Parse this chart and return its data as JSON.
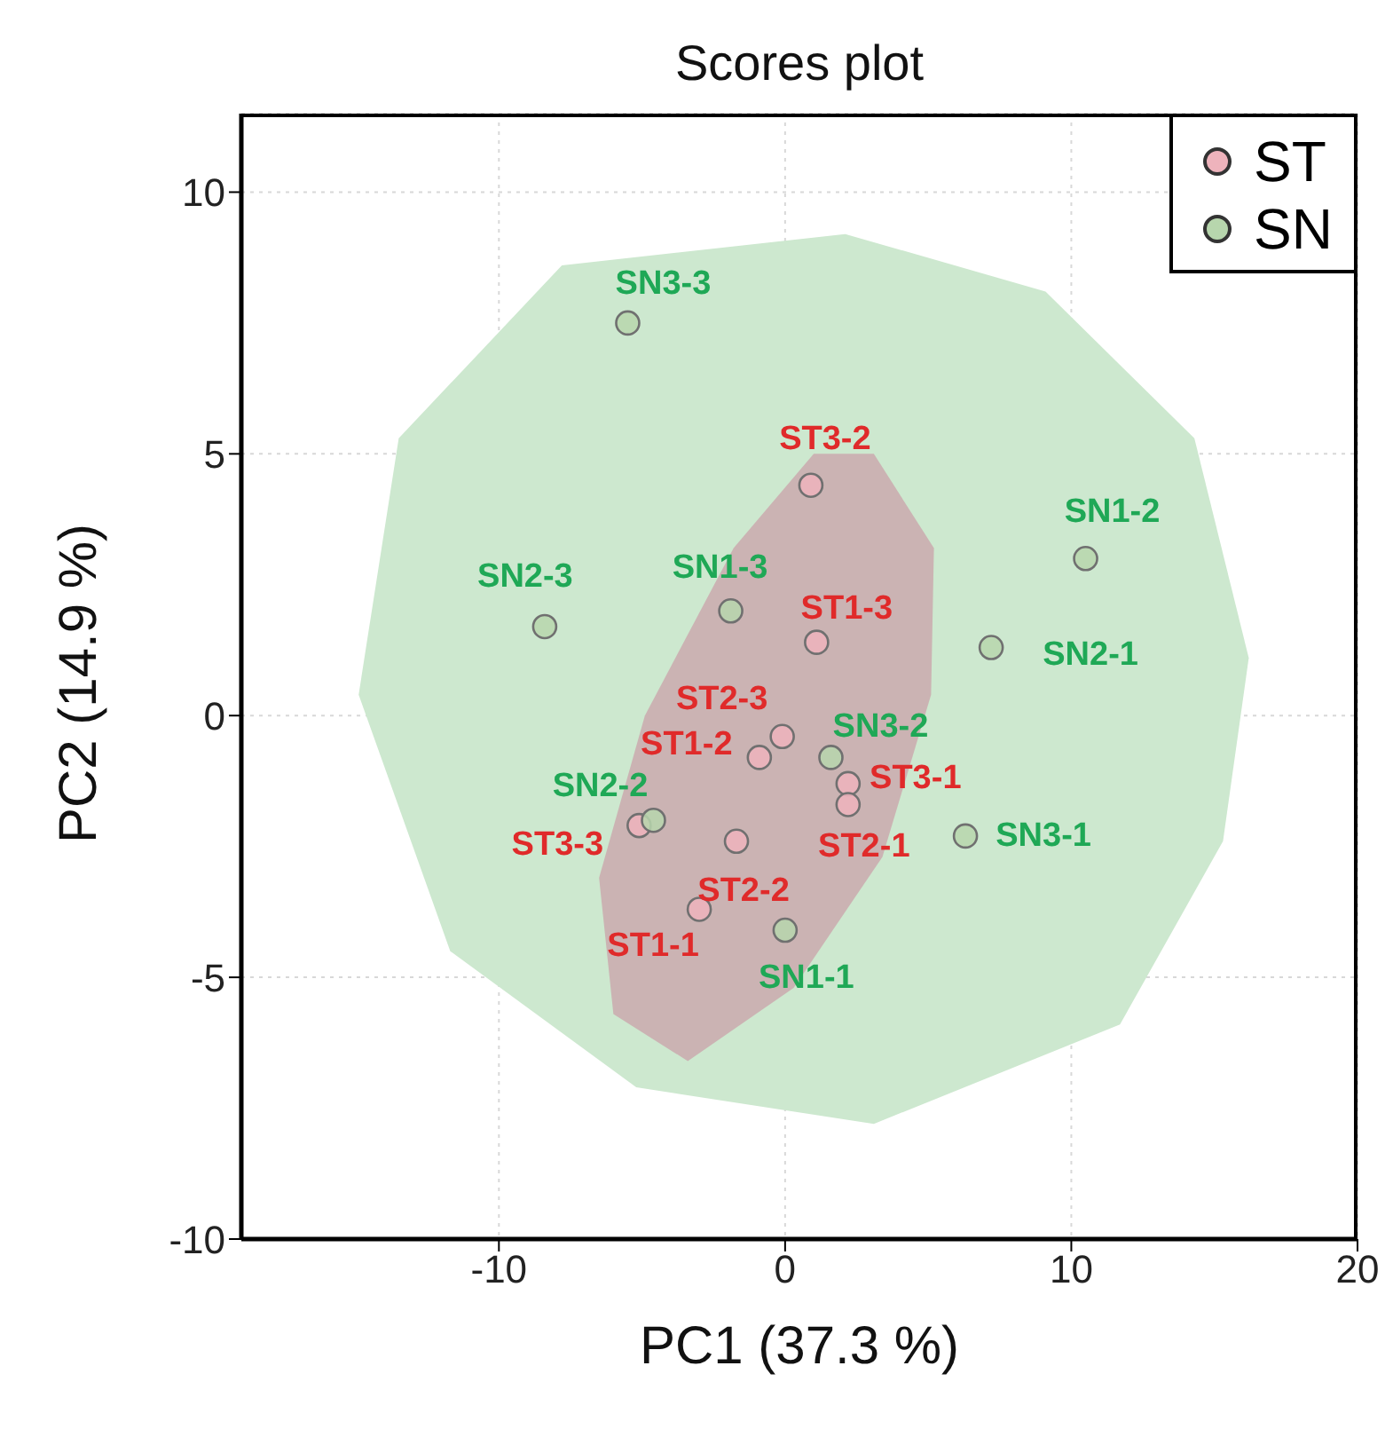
{
  "chart_data": {
    "type": "scatter",
    "title": "Scores plot",
    "xlabel": "PC1 (37.3 %)",
    "ylabel": "PC2 (14.9 %)",
    "xlim": [
      -19,
      20
    ],
    "ylim": [
      -10,
      11.5
    ],
    "xticks": [
      -10,
      0,
      10,
      20
    ],
    "yticks": [
      -10,
      -5,
      0,
      5,
      10
    ],
    "grid": true,
    "legend": "top right",
    "marker": "circle",
    "series": [
      {
        "type": "area",
        "marker": "none",
        "color": "#cde8cf",
        "x": [
          2.1,
          9.1,
          14.3,
          16.2,
          15.3,
          11.7,
          3.1,
          -5.2,
          -11.7,
          -14.9,
          -13.5,
          -7.8
        ],
        "values": [
          9.2,
          8.1,
          5.3,
          1.1,
          -2.4,
          -5.9,
          -7.8,
          -7.1,
          -4.5,
          0.4,
          5.3,
          8.6
        ]
      },
      {
        "type": "area",
        "marker": "none",
        "color": "#cbb3b3",
        "x": [
          3.1,
          5.2,
          5.1,
          3.4,
          0.3,
          -3.4,
          -6.0,
          -6.5,
          -4.9,
          -1.8,
          1.0
        ],
        "values": [
          5.0,
          3.2,
          0.4,
          -2.7,
          -5.2,
          -6.6,
          -5.7,
          -3.1,
          0.0,
          3.2,
          5.0
        ]
      },
      {
        "name": "ST",
        "color": "#eeb3bc",
        "x": [
          0.9,
          1.1,
          -0.1,
          -0.9,
          2.2,
          2.2,
          -5.1,
          -1.7,
          -3.0
        ],
        "values": [
          4.4,
          1.4,
          -0.4,
          -0.8,
          -1.3,
          -1.7,
          -2.1,
          -2.4,
          -3.7
        ]
      },
      {
        "name": "SN",
        "color": "#b7d6ad",
        "x": [
          -5.5,
          10.5,
          -8.4,
          -1.9,
          7.2,
          1.6,
          6.3,
          -4.6,
          0.0
        ],
        "values": [
          7.5,
          3.0,
          1.7,
          2.0,
          1.3,
          -0.8,
          -2.3,
          -2.0,
          -4.1
        ]
      }
    ],
    "annotations": [
      {
        "text": "ST3-2",
        "x": 0.9,
        "y": 4.4
      },
      {
        "text": "ST1-3",
        "x": 1.1,
        "y": 1.4
      },
      {
        "text": "ST2-3",
        "x": -0.1,
        "y": -0.4
      },
      {
        "text": "ST1-2",
        "x": -0.9,
        "y": -0.8
      },
      {
        "text": "ST3-1",
        "x": 2.2,
        "y": -1.3
      },
      {
        "text": "ST2-1",
        "x": 2.2,
        "y": -1.7
      },
      {
        "text": "ST3-3",
        "x": -5.1,
        "y": -2.1
      },
      {
        "text": "ST2-2",
        "x": -1.7,
        "y": -2.4
      },
      {
        "text": "ST1-1",
        "x": -3.0,
        "y": -3.7
      },
      {
        "text": "SN3-3",
        "x": -5.5,
        "y": 7.5
      },
      {
        "text": "SN1-2",
        "x": 10.5,
        "y": 3.0
      },
      {
        "text": "SN2-3",
        "x": -8.4,
        "y": 1.7
      },
      {
        "text": "SN1-3",
        "x": -1.9,
        "y": 2.0
      },
      {
        "text": "SN2-1",
        "x": 7.2,
        "y": 1.3
      },
      {
        "text": "SN3-2",
        "x": 1.6,
        "y": -0.8
      },
      {
        "text": "SN3-1",
        "x": 6.3,
        "y": -2.3
      },
      {
        "text": "SN2-2",
        "x": -4.6,
        "y": -2.0
      },
      {
        "text": "SN1-1",
        "x": 0.0,
        "y": -4.1
      }
    ]
  }
}
